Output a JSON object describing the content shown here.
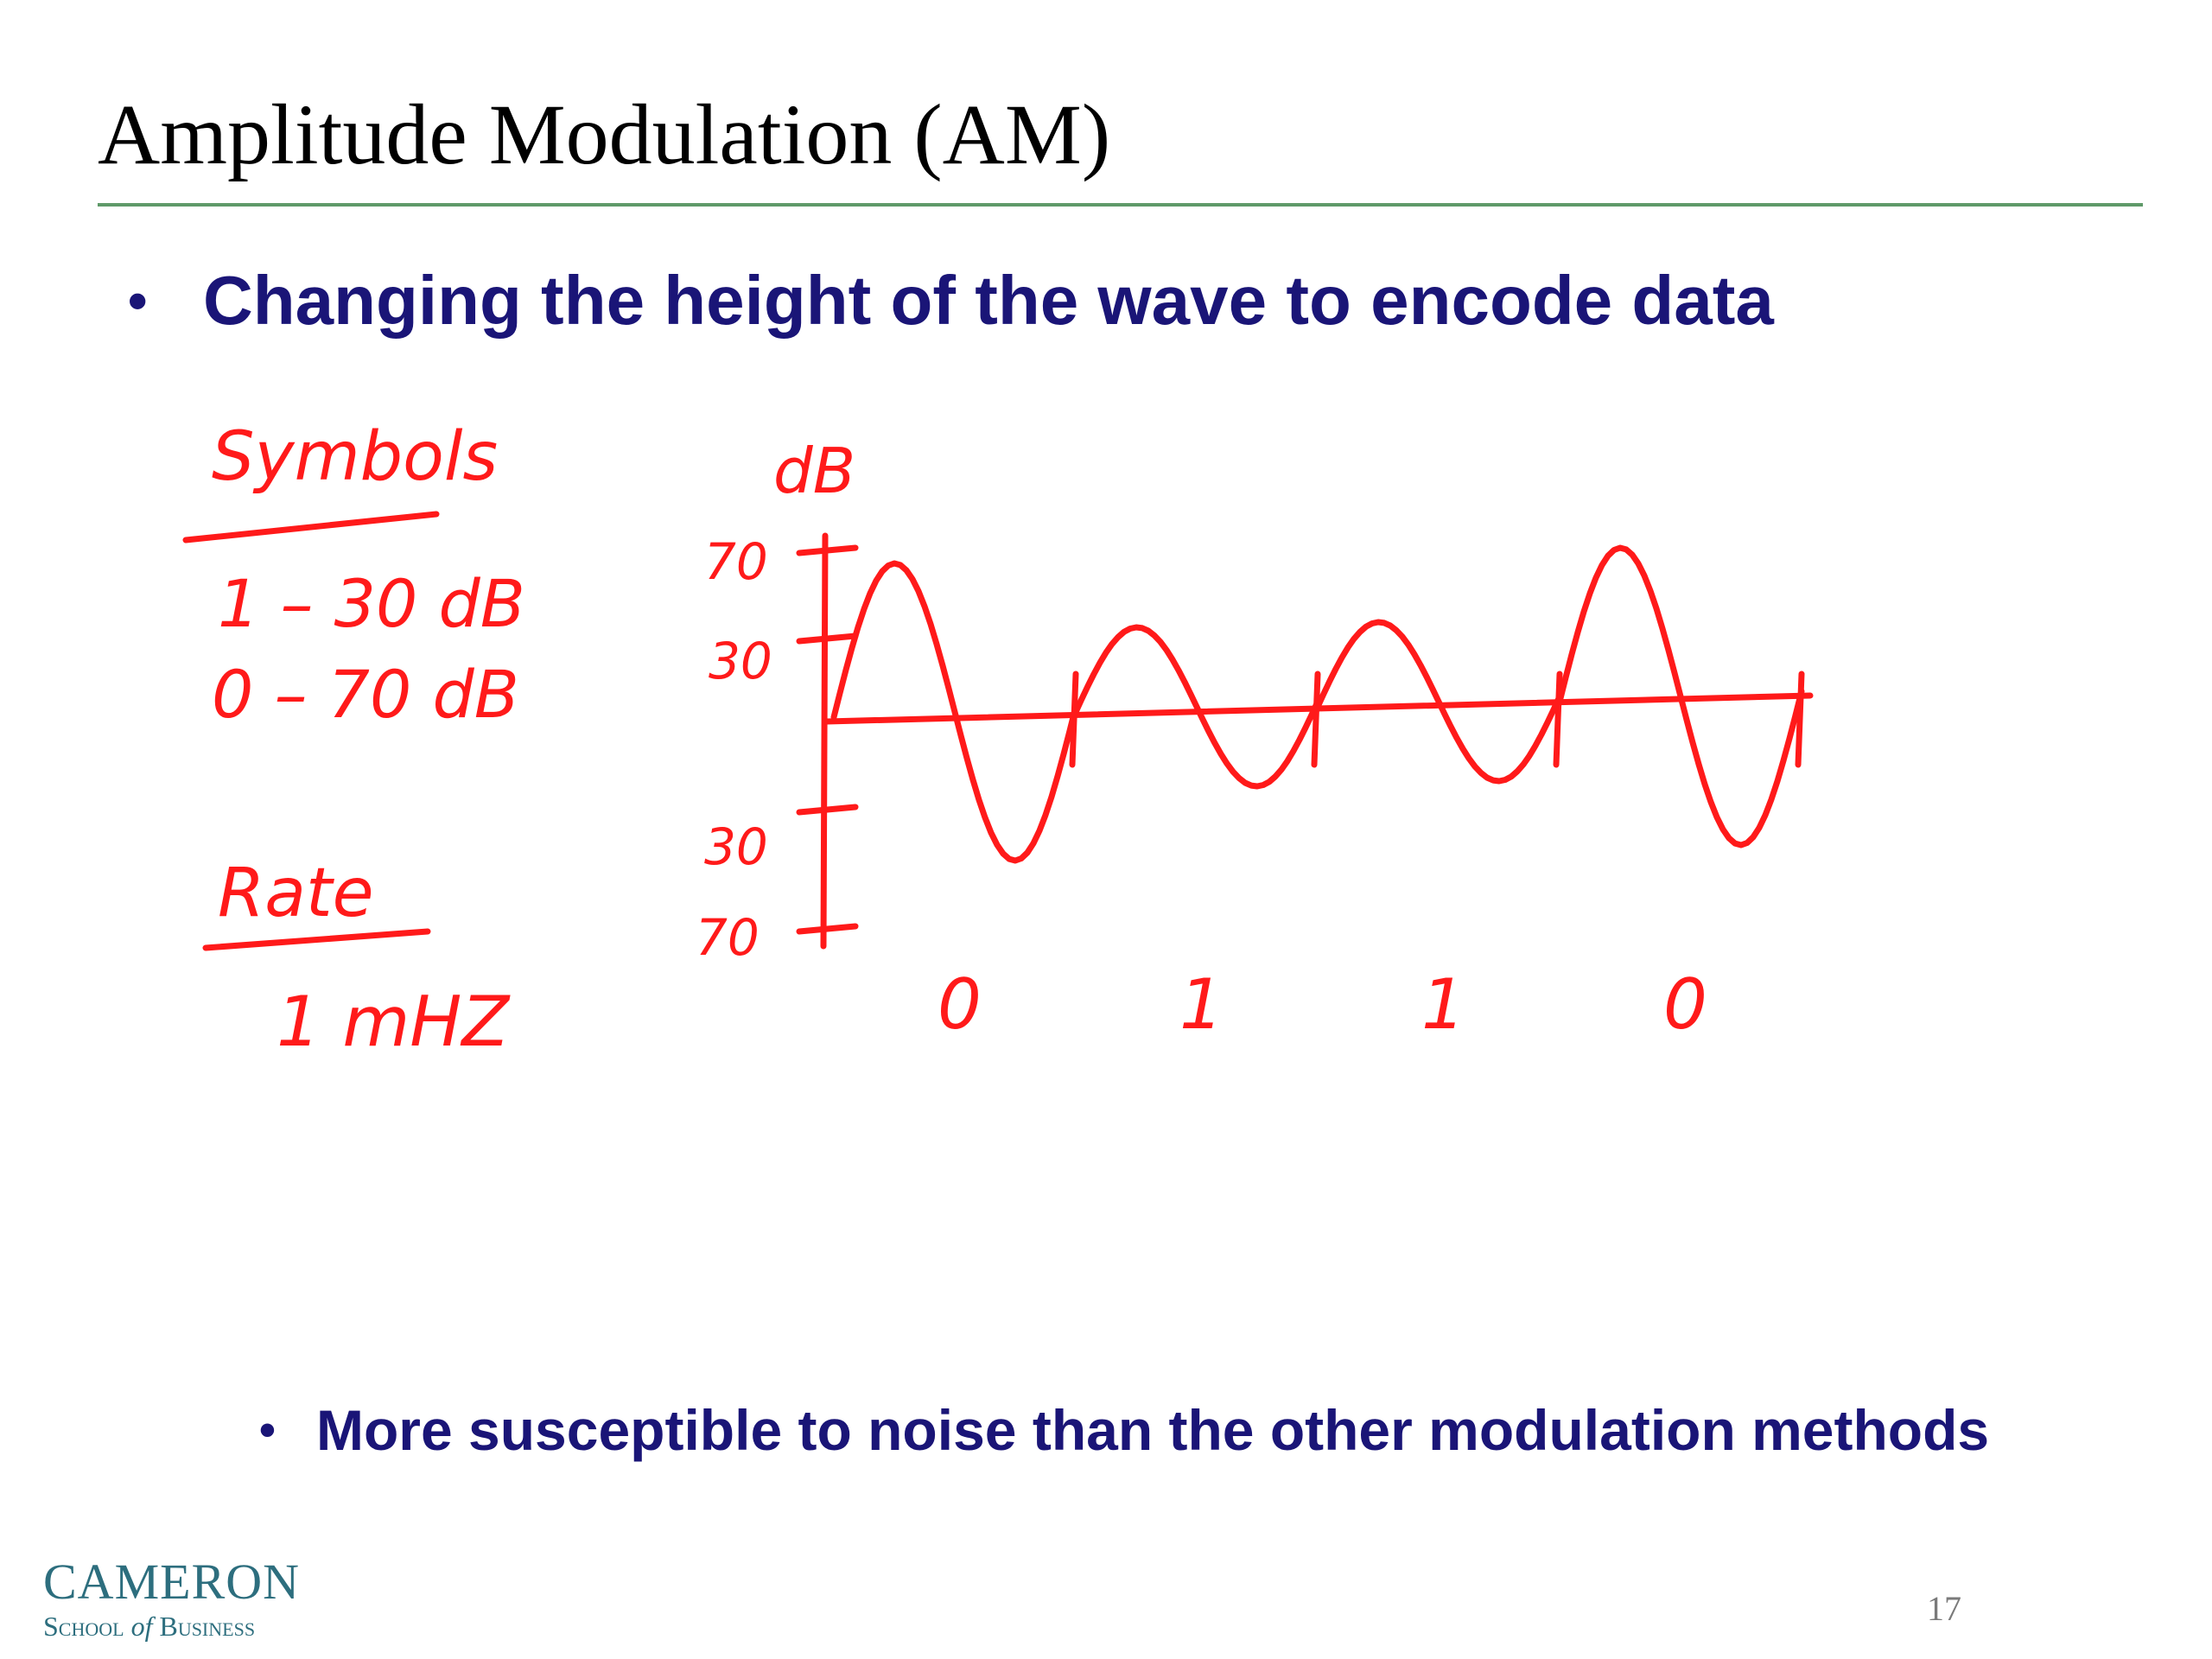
{
  "slide": {
    "title": "Amplitude Modulation (AM)",
    "bullets": [
      "Changing the height of the wave to encode data",
      "More susceptible to noise than the other modulation methods"
    ],
    "page_number": "17"
  },
  "annotations": {
    "symbols_heading": "Symbols",
    "symbols": [
      "1 – 30 dB",
      "0 – 70 dB"
    ],
    "rate_heading": "Rate",
    "rate_value": "1 mHZ"
  },
  "chart_data": {
    "type": "line",
    "ylabel": "dB",
    "y_ticks_upper": [
      "70",
      "30"
    ],
    "y_ticks_lower": [
      "30",
      "70"
    ],
    "symbols": [
      "0",
      "1",
      "1",
      "0"
    ],
    "amplitudes": [
      70,
      30,
      30,
      70
    ],
    "colors": {
      "ink": "#ff1a1a"
    }
  },
  "footer": {
    "logo_main": "CAMERON",
    "logo_sub_1": "School",
    "logo_sub_of": "of",
    "logo_sub_2": "Business"
  }
}
